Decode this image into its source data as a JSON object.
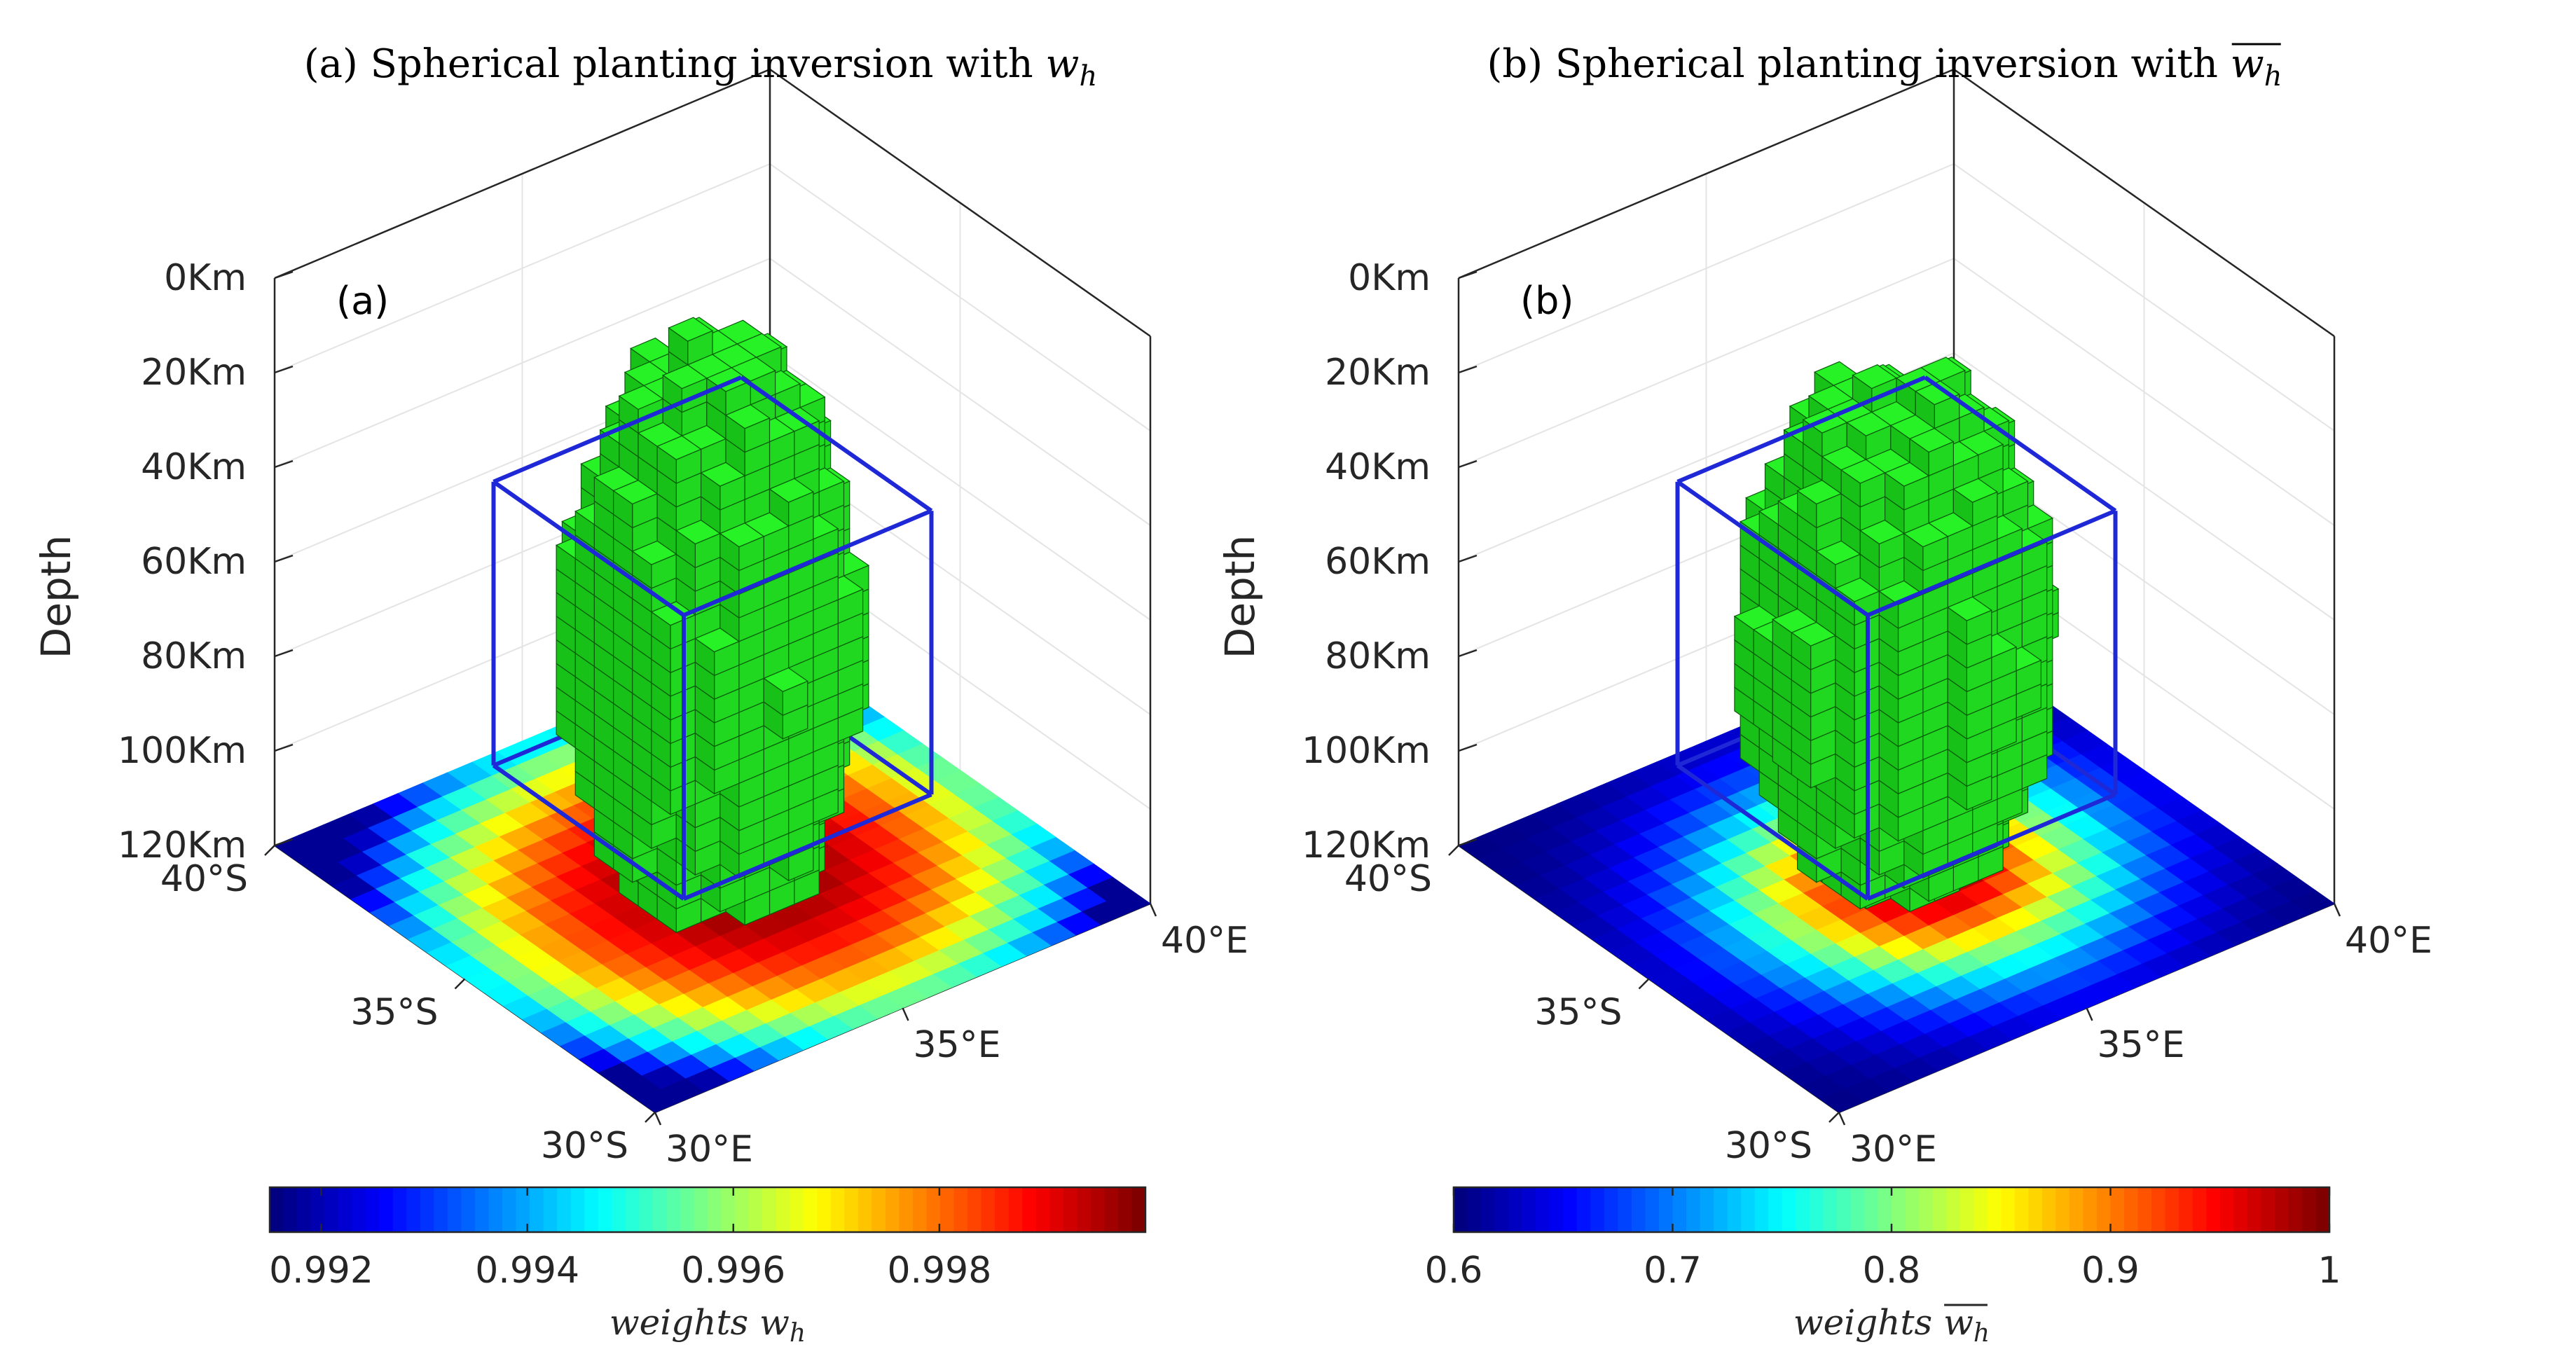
{
  "panels": [
    {
      "title_prefix": "(a) Spherical planting inversion with ",
      "title_symbol": "w",
      "title_sub": "h",
      "title_overline": false,
      "panel_tag": "(a)",
      "depth_axis_label": "Depth",
      "depth_ticks": [
        "0Km",
        "20Km",
        "40Km",
        "60Km",
        "80Km",
        "100Km",
        "120Km"
      ],
      "lat_ticks": [
        "40°S",
        "35°S",
        "30°S"
      ],
      "lon_ticks": [
        "30°E",
        "35°E",
        "40°E"
      ],
      "colorbar_ticks": [
        "0.992",
        "0.994",
        "0.996",
        "0.998"
      ],
      "colorbar_label_italic": "weights",
      "colorbar_symbol": "w",
      "colorbar_sub": "h",
      "colorbar_overline": false,
      "colorbar_range": [
        0.9915,
        1.0
      ]
    },
    {
      "title_prefix": "(b) Spherical planting inversion with ",
      "title_symbol": "w",
      "title_sub": "h",
      "title_overline": true,
      "panel_tag": "(b)",
      "depth_axis_label": "Depth",
      "depth_ticks": [
        "0Km",
        "20Km",
        "40Km",
        "60Km",
        "80Km",
        "100Km",
        "120Km"
      ],
      "lat_ticks": [
        "40°S",
        "35°S",
        "30°S"
      ],
      "lon_ticks": [
        "30°E",
        "35°E",
        "40°E"
      ],
      "colorbar_ticks": [
        "0.6",
        "0.7",
        "0.8",
        "0.9",
        "1"
      ],
      "colorbar_label_italic": "weights",
      "colorbar_symbol": "w",
      "colorbar_sub": "h",
      "colorbar_overline": true,
      "colorbar_range": [
        0.6,
        1.0
      ]
    }
  ],
  "colors": {
    "voxel_fill": "#22ee22",
    "voxel_stroke": "#0a5a0a",
    "true_model_box": "#1f28d6",
    "colormap": "jet"
  },
  "chart_data": [
    {
      "type": "heatmap",
      "title": "(a) Spherical planting inversion with w_h",
      "zlabel": "Depth",
      "x_ticks": [
        "30°E",
        "35°E",
        "40°E"
      ],
      "y_ticks": [
        "30°S",
        "35°S",
        "40°S"
      ],
      "z_ticks": [
        "0Km",
        "20Km",
        "40Km",
        "60Km",
        "80Km",
        "100Km",
        "120Km"
      ],
      "grid_size": [
        20,
        20
      ],
      "weight_min": 0.9915,
      "weight_max": 1.0,
      "weight_peak_location": "center",
      "colorbar_label": "weights w_h",
      "colorbar_ticks": [
        0.992,
        0.994,
        0.996,
        0.998
      ],
      "recovered_body_depth_km": [
        20,
        120
      ],
      "true_body_depth_km": [
        40,
        100
      ],
      "grid": true
    },
    {
      "type": "heatmap",
      "title": "(b) Spherical planting inversion with w̄_h",
      "zlabel": "Depth",
      "x_ticks": [
        "30°E",
        "35°E",
        "40°E"
      ],
      "y_ticks": [
        "30°S",
        "35°S",
        "40°S"
      ],
      "z_ticks": [
        "0Km",
        "20Km",
        "40Km",
        "60Km",
        "80Km",
        "100Km",
        "120Km"
      ],
      "grid_size": [
        20,
        20
      ],
      "weight_min": 0.6,
      "weight_max": 1.0,
      "weight_peak_location": "center",
      "colorbar_label": "weights w̄_h",
      "colorbar_ticks": [
        0.6,
        0.7,
        0.8,
        0.9,
        1
      ],
      "recovered_body_depth_km": [
        27,
        112
      ],
      "true_body_depth_km": [
        40,
        100
      ],
      "grid": true
    }
  ]
}
